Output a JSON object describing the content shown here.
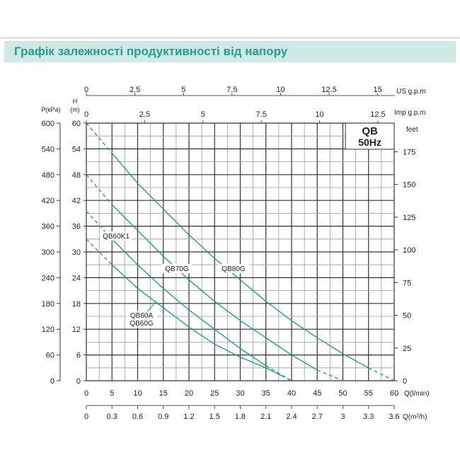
{
  "title": "Графік залежності продуктивності від напору",
  "chart_data": {
    "type": "line",
    "title": "Графік залежності продуктивності від напору",
    "legend_box": {
      "line1": "QB",
      "line2": "50Hz"
    },
    "x_axes": {
      "q_lmin": {
        "label": "Q(l/min)",
        "range": [
          0,
          60
        ],
        "ticks": [
          0,
          5,
          10,
          15,
          20,
          25,
          30,
          35,
          40,
          45,
          50,
          55,
          60
        ]
      },
      "q_m3h": {
        "label": "Q(m³/h)",
        "range": [
          0,
          3.6
        ],
        "ticks": [
          "0",
          "0.3",
          "0.6",
          "0.9",
          "1.2",
          "1.5",
          "1.8",
          "2.1",
          "2.4",
          "2.7",
          "3",
          "3.3",
          "3.6"
        ]
      },
      "us_gpm": {
        "label": "US  g.p.m",
        "ticks": [
          "0",
          "2.5",
          "5",
          "7.5",
          "10",
          "12.5",
          "15"
        ]
      },
      "imp_gpm": {
        "label": "Imp  g.p.m",
        "ticks": [
          "0",
          "2.5",
          "5",
          "7.5",
          "10",
          "12.5"
        ]
      }
    },
    "y_axes": {
      "h_m": {
        "label_line1": "H",
        "label_line2": "(m)",
        "range": [
          0,
          60
        ],
        "ticks": [
          0,
          6,
          12,
          18,
          24,
          30,
          36,
          42,
          48,
          54,
          60
        ]
      },
      "p_kpa": {
        "label": "P(кPa)",
        "ticks": [
          0,
          60,
          120,
          180,
          240,
          300,
          360,
          420,
          480,
          540,
          600
        ]
      },
      "feet": {
        "label": "feet",
        "ticks": [
          0,
          25,
          50,
          75,
          100,
          125,
          150,
          175
        ]
      }
    },
    "grid": true,
    "line_color": "#2a9a8c",
    "series": [
      {
        "name": "QB80G",
        "x": [
          0,
          5,
          10,
          15,
          20,
          25,
          30,
          35,
          40,
          45,
          50,
          55,
          60
        ],
        "y": [
          60,
          53,
          46,
          40,
          34,
          28.5,
          23.5,
          18.5,
          14,
          10,
          6.3,
          3,
          0
        ]
      },
      {
        "name": "QB70G",
        "x": [
          0,
          5,
          10,
          15,
          20,
          25,
          30,
          35,
          40,
          45,
          50
        ],
        "y": [
          48,
          41,
          35,
          29,
          23.5,
          18.5,
          14,
          10,
          6,
          2.5,
          0
        ]
      },
      {
        "name": "QB60K1",
        "x": [
          0,
          5,
          10,
          15,
          20,
          25,
          30,
          35,
          40
        ],
        "y": [
          39.5,
          33,
          27,
          21.5,
          16.5,
          12,
          7.5,
          3.5,
          0
        ]
      },
      {
        "name": "QB60A\nQB60G",
        "x": [
          0,
          5,
          10,
          15,
          20,
          25,
          30,
          35,
          38,
          40
        ],
        "y": [
          33,
          27,
          21.5,
          17,
          12.5,
          8.5,
          5.5,
          3,
          1.2,
          0
        ]
      }
    ]
  }
}
